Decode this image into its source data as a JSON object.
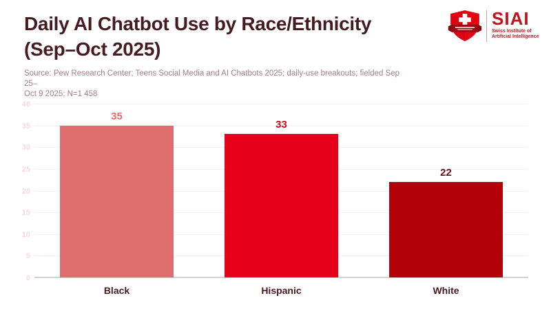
{
  "header": {
    "title_line1": "Daily AI Chatbot Use by Race/Ethnicity",
    "title_line2": "(Sep–Oct 2025)",
    "source_line1": "Source: Pew Research Center; Teens Social Media and AI Chatbots 2025; daily-use breakouts; fielded Sep 25–",
    "source_line2": "Oct 9 2025; N=1 458"
  },
  "logo": {
    "acronym": "SIAI",
    "tagline_line1": "Swiss Institute of",
    "tagline_line2": "Artificial Intelligence",
    "colors": {
      "shield": "#e30613",
      "cross": "#ffffff",
      "banner": "#9a0b10",
      "text": "#c0131c"
    }
  },
  "chart_data": {
    "type": "bar",
    "title": "Daily AI Chatbot Use by Race/Ethnicity (Sep–Oct 2025)",
    "categories": [
      "Black",
      "Hispanic",
      "White"
    ],
    "values": [
      35,
      33,
      22
    ],
    "bar_colors": [
      "#e06d6d",
      "#e60019",
      "#b30009"
    ],
    "value_label_colors": [
      "#e06d6d",
      "#e60019",
      "#6e1014"
    ],
    "xlabel": "",
    "ylabel": "",
    "ylim": [
      0,
      40
    ],
    "yticks": [
      0,
      5,
      10,
      15,
      20,
      25,
      30,
      35,
      40
    ],
    "grid": true,
    "legend": false,
    "colors": {
      "title": "#451a20",
      "source": "#a17d83",
      "tick_label": "#f6d9dd",
      "gridline": "#fbebee",
      "axis_line": "#d8ced1",
      "category_label": "#47191f",
      "background": "#ffffff"
    }
  }
}
